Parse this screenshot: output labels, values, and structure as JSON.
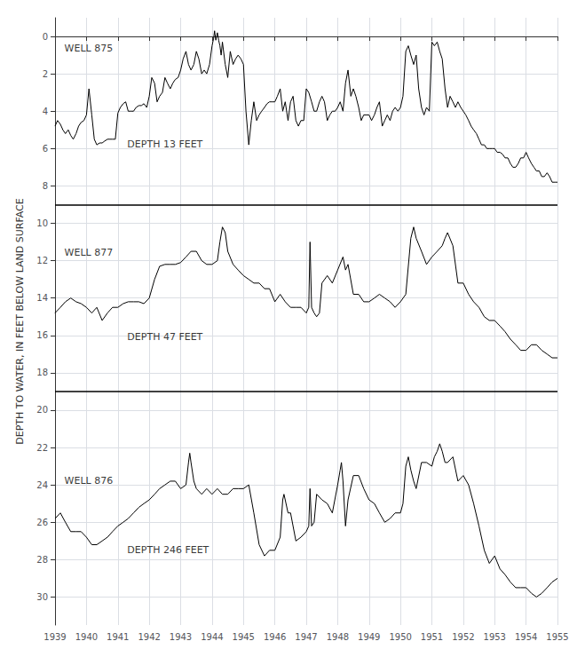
{
  "chart_data": {
    "type": "line",
    "ylabel": "DEPTH TO WATER, IN FEET BELOW LAND SURFACE",
    "xlim": [
      1939,
      1955
    ],
    "xticks": [
      1939,
      1940,
      1941,
      1942,
      1943,
      1944,
      1945,
      1946,
      1947,
      1948,
      1949,
      1950,
      1951,
      1952,
      1953,
      1954,
      1955
    ],
    "ylim": [
      31.5,
      -1.0
    ],
    "yticks": [
      0,
      2,
      4,
      6,
      8,
      10,
      12,
      14,
      16,
      18,
      20,
      22,
      24,
      26,
      28,
      30
    ],
    "grid": true,
    "hlines": [
      9.0,
      19.0
    ],
    "annotations": [
      {
        "text": "WELL 875",
        "x": 1939.3,
        "y": 0.4
      },
      {
        "text": "DEPTH 13 FEET",
        "x": 1941.3,
        "y": 5.5
      },
      {
        "text": "WELL 877",
        "x": 1939.3,
        "y": 11.3
      },
      {
        "text": "DEPTH 47 FEET",
        "x": 1941.3,
        "y": 15.8
      },
      {
        "text": "WELL 876",
        "x": 1939.3,
        "y": 23.5
      },
      {
        "text": "DEPTH 246 FEET",
        "x": 1941.3,
        "y": 27.2
      }
    ],
    "series": [
      {
        "color": "#000000",
        "x": [
          1939.0,
          1939.08,
          1939.17,
          1939.25,
          1939.33,
          1939.42,
          1939.5,
          1939.58,
          1939.67,
          1939.75,
          1939.83,
          1939.92,
          1940.0,
          1940.08,
          1940.17,
          1940.25,
          1940.33,
          1940.42,
          1940.5,
          1940.58,
          1940.67,
          1940.75,
          1940.83,
          1940.92,
          1941.0,
          1941.08,
          1941.17,
          1941.25,
          1941.33,
          1941.42,
          1941.5,
          1941.58,
          1941.67,
          1941.75,
          1941.83,
          1941.92,
          1942.0,
          1942.08,
          1942.17,
          1942.25,
          1942.33,
          1942.42,
          1942.5,
          1942.58,
          1942.67,
          1942.75,
          1942.83,
          1942.92,
          1943.0,
          1943.08,
          1943.17,
          1943.25,
          1943.33,
          1943.42,
          1943.5,
          1943.58,
          1943.67,
          1943.75,
          1943.83,
          1943.92,
          1944.0,
          1944.05,
          1944.08,
          1944.12,
          1944.17,
          1944.21,
          1944.25,
          1944.29,
          1944.33,
          1944.42,
          1944.5,
          1944.58,
          1944.67,
          1944.75,
          1944.83,
          1944.92,
          1945.0,
          1945.08,
          1945.17,
          1945.25,
          1945.33,
          1945.42,
          1945.5,
          1945.58,
          1945.67,
          1945.75,
          1945.83,
          1945.92,
          1946.0,
          1946.08,
          1946.17,
          1946.25,
          1946.33,
          1946.42,
          1946.5,
          1946.58,
          1946.67,
          1946.75,
          1946.83,
          1946.92,
          1947.0,
          1947.08,
          1947.17,
          1947.25,
          1947.33,
          1947.42,
          1947.5,
          1947.58,
          1947.67,
          1947.75,
          1947.83,
          1947.92,
          1948.0,
          1948.08,
          1948.17,
          1948.25,
          1948.33,
          1948.42,
          1948.5,
          1948.58,
          1948.67,
          1948.75,
          1948.83,
          1948.92,
          1949.0,
          1949.08,
          1949.17,
          1949.25,
          1949.33,
          1949.42,
          1949.5,
          1949.58,
          1949.67,
          1949.75,
          1949.83,
          1949.92,
          1950.0,
          1950.08,
          1950.17,
          1950.25,
          1950.33,
          1950.42,
          1950.5,
          1950.58,
          1950.67,
          1950.75,
          1950.83,
          1950.92,
          1951.0,
          1951.08,
          1951.17,
          1951.25,
          1951.33,
          1951.42,
          1951.5,
          1951.58,
          1951.67,
          1951.75,
          1951.83,
          1951.92,
          1952.0,
          1952.08,
          1952.17,
          1952.25,
          1952.33,
          1952.42,
          1952.5,
          1952.58,
          1952.67,
          1952.75,
          1952.83,
          1952.92,
          1953.0,
          1953.08,
          1953.17,
          1953.25,
          1953.33,
          1953.42,
          1953.5,
          1953.58,
          1953.67,
          1953.75,
          1953.83,
          1953.92,
          1954.0,
          1954.08,
          1954.17,
          1954.25,
          1954.33,
          1954.42,
          1954.5,
          1954.58,
          1954.67,
          1954.75,
          1954.83,
          1954.92,
          1955.0
        ],
        "values": [
          4.8,
          4.5,
          4.7,
          5.0,
          5.2,
          5.0,
          5.3,
          5.5,
          5.2,
          4.8,
          4.6,
          4.5,
          4.2,
          2.8,
          4.2,
          5.5,
          5.8,
          5.7,
          5.7,
          5.6,
          5.5,
          5.5,
          5.5,
          5.5,
          4.1,
          3.8,
          3.6,
          3.5,
          4.0,
          4.0,
          4.0,
          3.8,
          3.7,
          3.7,
          3.6,
          3.8,
          3.2,
          2.2,
          2.5,
          3.5,
          3.2,
          3.0,
          2.2,
          2.5,
          2.8,
          2.5,
          2.3,
          2.2,
          1.8,
          1.2,
          0.8,
          1.5,
          1.8,
          1.5,
          0.8,
          1.2,
          2.0,
          1.8,
          2.0,
          1.5,
          0.5,
          0.1,
          -0.3,
          0.2,
          -0.2,
          0.2,
          0.5,
          1.0,
          0.3,
          1.5,
          2.2,
          0.8,
          1.5,
          1.2,
          1.0,
          1.2,
          1.5,
          4.0,
          5.8,
          4.5,
          3.5,
          4.5,
          4.2,
          4.0,
          3.8,
          3.6,
          3.5,
          3.5,
          3.5,
          3.2,
          2.8,
          4.0,
          3.5,
          4.5,
          3.5,
          3.2,
          4.5,
          4.8,
          4.5,
          4.5,
          2.8,
          3.0,
          3.5,
          4.0,
          4.0,
          3.5,
          3.2,
          3.5,
          4.5,
          4.2,
          4.0,
          4.0,
          3.8,
          3.5,
          4.0,
          2.5,
          1.8,
          3.2,
          2.8,
          3.2,
          3.8,
          4.5,
          4.2,
          4.2,
          4.2,
          4.5,
          4.2,
          3.8,
          3.5,
          4.8,
          4.5,
          4.2,
          4.5,
          4.0,
          3.8,
          4.0,
          3.8,
          3.2,
          0.8,
          0.5,
          1.0,
          1.5,
          1.0,
          2.8,
          3.8,
          4.2,
          3.8,
          4.0,
          0.3,
          0.5,
          0.3,
          0.8,
          1.2,
          2.8,
          3.8,
          3.2,
          3.5,
          3.8,
          3.5,
          3.8,
          4.0,
          4.2,
          4.5,
          4.8,
          5.0,
          5.2,
          5.5,
          5.8,
          5.8,
          6.0,
          6.0,
          6.0,
          6.0,
          6.2,
          6.2,
          6.3,
          6.5,
          6.5,
          6.8,
          7.0,
          7.0,
          6.8,
          6.5,
          6.5,
          6.2,
          6.5,
          6.8,
          7.0,
          7.2,
          7.2,
          7.5,
          7.5,
          7.3,
          7.5,
          7.8,
          7.8,
          7.8
        ]
      },
      {
        "color": "#000000",
        "x": [
          1939.0,
          1939.17,
          1939.33,
          1939.5,
          1939.67,
          1939.83,
          1940.0,
          1940.17,
          1940.33,
          1940.5,
          1940.67,
          1940.83,
          1941.0,
          1941.17,
          1941.33,
          1941.5,
          1941.67,
          1941.83,
          1942.0,
          1942.17,
          1942.33,
          1942.5,
          1942.67,
          1942.83,
          1943.0,
          1943.17,
          1943.33,
          1943.5,
          1943.67,
          1943.83,
          1944.0,
          1944.17,
          1944.25,
          1944.33,
          1944.42,
          1944.5,
          1944.67,
          1944.83,
          1945.0,
          1945.17,
          1945.33,
          1945.5,
          1945.67,
          1945.83,
          1946.0,
          1946.17,
          1946.33,
          1946.5,
          1946.67,
          1946.83,
          1947.0,
          1947.08,
          1947.12,
          1947.17,
          1947.25,
          1947.33,
          1947.42,
          1947.5,
          1947.67,
          1947.83,
          1948.0,
          1948.17,
          1948.25,
          1948.33,
          1948.5,
          1948.67,
          1948.83,
          1949.0,
          1949.17,
          1949.33,
          1949.5,
          1949.67,
          1949.83,
          1950.0,
          1950.17,
          1950.33,
          1950.42,
          1950.5,
          1950.67,
          1950.83,
          1951.0,
          1951.17,
          1951.33,
          1951.42,
          1951.5,
          1951.67,
          1951.83,
          1952.0,
          1952.17,
          1952.33,
          1952.5,
          1952.67,
          1952.83,
          1953.0,
          1953.17,
          1953.33,
          1953.5,
          1953.67,
          1953.83,
          1954.0,
          1954.17,
          1954.33,
          1954.5,
          1954.67,
          1954.83,
          1955.0
        ],
        "values": [
          14.8,
          14.5,
          14.2,
          14.0,
          14.2,
          14.3,
          14.5,
          14.8,
          14.5,
          15.2,
          14.8,
          14.5,
          14.5,
          14.3,
          14.2,
          14.2,
          14.2,
          14.3,
          14.0,
          13.0,
          12.3,
          12.2,
          12.2,
          12.2,
          12.1,
          11.8,
          11.5,
          11.5,
          12.0,
          12.2,
          12.2,
          12.0,
          11.0,
          10.2,
          10.5,
          11.5,
          12.2,
          12.5,
          12.8,
          13.0,
          13.2,
          13.2,
          13.5,
          13.5,
          14.2,
          13.8,
          14.2,
          14.5,
          14.5,
          14.5,
          14.8,
          14.5,
          11.0,
          14.5,
          14.8,
          15.0,
          14.8,
          13.2,
          12.8,
          13.2,
          12.5,
          11.8,
          12.5,
          12.2,
          13.8,
          13.8,
          14.2,
          14.2,
          14.0,
          13.8,
          14.0,
          14.2,
          14.5,
          14.2,
          13.8,
          10.8,
          10.2,
          10.8,
          11.5,
          12.2,
          11.8,
          11.5,
          11.2,
          10.8,
          10.5,
          11.2,
          13.2,
          13.2,
          13.8,
          14.2,
          14.5,
          15.0,
          15.2,
          15.2,
          15.5,
          15.8,
          16.2,
          16.5,
          16.8,
          16.8,
          16.5,
          16.5,
          16.8,
          17.0,
          17.2,
          17.2
        ]
      },
      {
        "color": "#000000",
        "x": [
          1939.0,
          1939.17,
          1939.33,
          1939.5,
          1939.67,
          1939.83,
          1940.0,
          1940.17,
          1940.33,
          1940.5,
          1940.67,
          1940.83,
          1941.0,
          1941.17,
          1941.33,
          1941.5,
          1941.67,
          1941.83,
          1942.0,
          1942.17,
          1942.33,
          1942.5,
          1942.67,
          1942.83,
          1943.0,
          1943.17,
          1943.25,
          1943.29,
          1943.33,
          1943.42,
          1943.5,
          1943.67,
          1943.83,
          1944.0,
          1944.17,
          1944.33,
          1944.5,
          1944.67,
          1944.83,
          1945.0,
          1945.17,
          1945.33,
          1945.5,
          1945.67,
          1945.83,
          1946.0,
          1946.17,
          1946.25,
          1946.29,
          1946.33,
          1946.42,
          1946.5,
          1946.67,
          1946.83,
          1947.0,
          1947.08,
          1947.12,
          1947.17,
          1947.25,
          1947.33,
          1947.5,
          1947.67,
          1947.83,
          1948.0,
          1948.08,
          1948.12,
          1948.17,
          1948.25,
          1948.33,
          1948.5,
          1948.67,
          1948.83,
          1949.0,
          1949.17,
          1949.33,
          1949.5,
          1949.67,
          1949.83,
          1950.0,
          1950.08,
          1950.17,
          1950.25,
          1950.33,
          1950.42,
          1950.5,
          1950.67,
          1950.83,
          1951.0,
          1951.08,
          1951.17,
          1951.25,
          1951.33,
          1951.42,
          1951.5,
          1951.67,
          1951.83,
          1952.0,
          1952.17,
          1952.33,
          1952.5,
          1952.67,
          1952.83,
          1953.0,
          1953.17,
          1953.33,
          1953.5,
          1953.67,
          1953.83,
          1954.0,
          1954.17,
          1954.33,
          1954.5,
          1954.67,
          1954.83,
          1955.0
        ],
        "values": [
          25.8,
          25.5,
          26.0,
          26.5,
          26.5,
          26.5,
          26.8,
          27.2,
          27.2,
          27.0,
          26.8,
          26.5,
          26.2,
          26.0,
          25.8,
          25.5,
          25.2,
          25.0,
          24.8,
          24.5,
          24.2,
          24.0,
          23.8,
          23.8,
          24.2,
          24.0,
          22.8,
          22.3,
          22.8,
          23.8,
          24.2,
          24.5,
          24.2,
          24.5,
          24.2,
          24.5,
          24.5,
          24.2,
          24.2,
          24.2,
          24.0,
          25.5,
          27.2,
          27.8,
          27.5,
          27.5,
          26.8,
          24.8,
          24.5,
          24.8,
          25.5,
          25.5,
          27.0,
          26.8,
          26.5,
          26.2,
          24.2,
          26.2,
          26.0,
          24.5,
          24.8,
          25.0,
          25.5,
          24.0,
          23.2,
          22.8,
          23.8,
          26.2,
          24.8,
          23.5,
          23.5,
          24.2,
          24.8,
          25.0,
          25.5,
          26.0,
          25.8,
          25.5,
          25.5,
          25.0,
          23.0,
          22.5,
          23.2,
          23.8,
          24.2,
          22.8,
          22.8,
          23.0,
          22.5,
          22.2,
          21.8,
          22.2,
          22.8,
          22.8,
          22.5,
          23.8,
          23.5,
          24.0,
          25.0,
          26.2,
          27.5,
          28.2,
          27.8,
          28.5,
          28.8,
          29.2,
          29.5,
          29.5,
          29.5,
          29.8,
          30.0,
          29.8,
          29.5,
          29.2,
          29.0
        ]
      }
    ]
  }
}
